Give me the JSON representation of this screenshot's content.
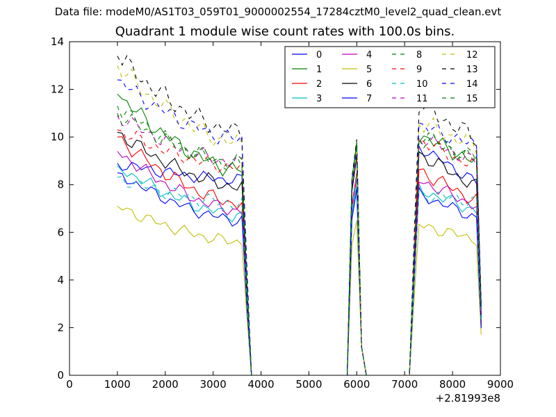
{
  "header": {
    "suptitle": "Data file: modeM0/AS1T03_059T01_9000002554_17284cztM0_level2_quad_clean.evt"
  },
  "chart_data": {
    "type": "line",
    "title": "Quadrant 1 module wise count rates with 100.0s bins.",
    "xlabel": "",
    "ylabel": "",
    "xlim": [
      0,
      9000
    ],
    "ylim": [
      0,
      14
    ],
    "xticks": [
      "0",
      "1000",
      "2000",
      "3000",
      "4000",
      "5000",
      "6000",
      "7000",
      "8000",
      "9000"
    ],
    "yticks": [
      "0",
      "2",
      "4",
      "6",
      "8",
      "10",
      "12",
      "14"
    ],
    "x_offset_label": "+2.81993e8",
    "grid": false,
    "legend_position": "top-right",
    "legend_columns": 4,
    "x": [
      1000,
      1100,
      1200,
      1300,
      1400,
      1500,
      1600,
      1700,
      1800,
      1900,
      2000,
      2100,
      2200,
      2300,
      2400,
      2500,
      2600,
      2700,
      2800,
      2900,
      3000,
      3100,
      3200,
      3300,
      3400,
      3500,
      3600,
      3700,
      3800,
      3900,
      4000,
      4100,
      4200,
      4300,
      4400,
      4500,
      4600,
      4700,
      4800,
      4900,
      5000,
      5100,
      5200,
      5300,
      5400,
      5500,
      5600,
      5700,
      5800,
      5900,
      6000,
      6100,
      6200,
      6300,
      6400,
      6500,
      6600,
      6700,
      6800,
      6900,
      7000,
      7100,
      7200,
      7300,
      7400,
      7500,
      7600,
      7700,
      7800,
      7900,
      8000,
      8100,
      8200,
      8300,
      8400,
      8500,
      8600
    ],
    "series": [
      {
        "name": "0",
        "color": "#0000ff",
        "dashed": false,
        "start": 8.9,
        "end": 8.2,
        "peak": 9.2,
        "p2": 9.6,
        "p2end": 8.1,
        "amp": 0.18
      },
      {
        "name": "1",
        "color": "#008000",
        "dashed": false,
        "start": 11.8,
        "end": 8.6,
        "peak": 9.8,
        "p2": 10.1,
        "p2end": 8.9,
        "amp": 0.25
      },
      {
        "name": "2",
        "color": "#ff0000",
        "dashed": false,
        "start": 10.0,
        "end": 7.2,
        "peak": 8.5,
        "p2": 8.6,
        "p2end": 7.3,
        "amp": 0.22
      },
      {
        "name": "3",
        "color": "#00bfbf",
        "dashed": false,
        "start": 8.8,
        "end": 6.7,
        "peak": 8.0,
        "p2": 7.8,
        "p2end": 6.9,
        "amp": 0.2
      },
      {
        "name": "4",
        "color": "#bf00bf",
        "dashed": false,
        "start": 9.4,
        "end": 6.9,
        "peak": 8.3,
        "p2": 8.2,
        "p2end": 7.1,
        "amp": 0.2
      },
      {
        "name": "5",
        "color": "#bfbf00",
        "dashed": false,
        "start": 7.1,
        "end": 5.6,
        "peak": 6.5,
        "p2": 6.3,
        "p2end": 5.7,
        "amp": 0.18
      },
      {
        "name": "6",
        "color": "#000000",
        "dashed": false,
        "start": 10.2,
        "end": 7.9,
        "peak": 9.2,
        "p2": 9.3,
        "p2end": 7.9,
        "amp": 0.22
      },
      {
        "name": "7",
        "color": "#0000ff",
        "dashed": false,
        "start": 8.5,
        "end": 6.5,
        "peak": 7.8,
        "p2": 7.6,
        "p2end": 6.6,
        "amp": 0.18
      },
      {
        "name": "8",
        "color": "#008000",
        "dashed": true,
        "start": 11.3,
        "end": 8.8,
        "peak": 9.7,
        "p2": 10.2,
        "p2end": 9.0,
        "amp": 0.25
      },
      {
        "name": "9",
        "color": "#ff0000",
        "dashed": true,
        "start": 10.3,
        "end": 8.7,
        "peak": 9.4,
        "p2": 9.9,
        "p2end": 8.7,
        "amp": 0.22
      },
      {
        "name": "10",
        "color": "#00bfbf",
        "dashed": true,
        "start": 8.3,
        "end": 7.2,
        "peak": 8.4,
        "p2": 7.6,
        "p2end": 7.3,
        "amp": 0.2
      },
      {
        "name": "11",
        "color": "#bf00bf",
        "dashed": true,
        "start": 10.9,
        "end": 8.9,
        "peak": 9.6,
        "p2": 10.0,
        "p2end": 8.9,
        "amp": 0.22
      },
      {
        "name": "12",
        "color": "#bfbf00",
        "dashed": true,
        "start": 13.0,
        "end": 9.7,
        "peak": 9.6,
        "p2": 10.6,
        "p2end": 9.6,
        "amp": 0.28
      },
      {
        "name": "13",
        "color": "#000000",
        "dashed": true,
        "start": 13.4,
        "end": 10.2,
        "peak": 9.9,
        "p2": 11.4,
        "p2end": 9.9,
        "amp": 0.3
      },
      {
        "name": "14",
        "color": "#0000ff",
        "dashed": true,
        "start": 12.4,
        "end": 9.9,
        "peak": 9.5,
        "p2": 10.5,
        "p2end": 9.6,
        "amp": 0.25
      },
      {
        "name": "15",
        "color": "#008000",
        "dashed": true,
        "start": 11.0,
        "end": 8.9,
        "peak": 9.7,
        "p2": 10.0,
        "p2end": 9.1,
        "amp": 0.25
      }
    ]
  }
}
